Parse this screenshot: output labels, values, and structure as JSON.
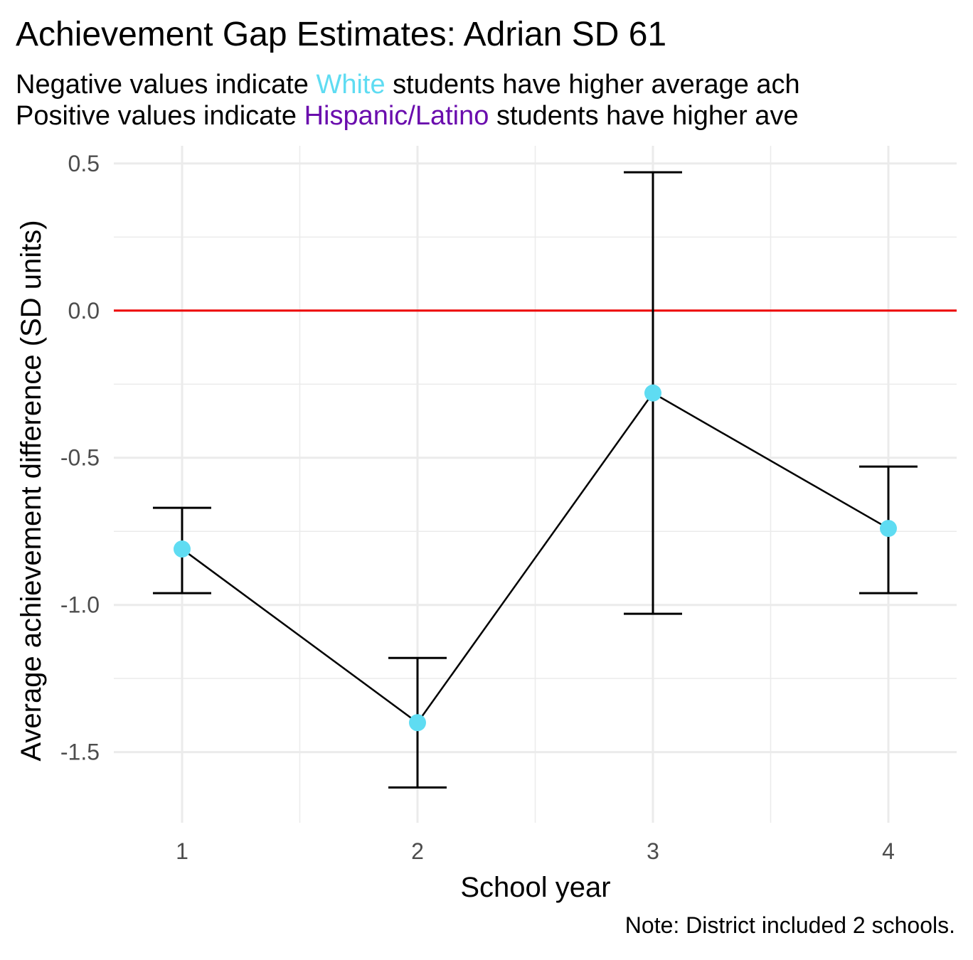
{
  "chart_data": {
    "type": "line",
    "title": "Achievement Gap Estimates: Adrian SD 61",
    "subtitle": {
      "line1": {
        "before": "Negative values indicate ",
        "highlight": "White",
        "after": " students have higher average ach"
      },
      "line2": {
        "before": "Positive values indicate ",
        "highlight": "Hispanic/Latino",
        "after": " students have higher ave"
      }
    },
    "xlabel": "School year",
    "ylabel": "Average achievement difference (SD units)",
    "caption": "Note: District included 2 schools.",
    "x": [
      1,
      2,
      3,
      4
    ],
    "x_tick_labels": [
      "1",
      "2",
      "3",
      "4"
    ],
    "xlim": [
      0.71,
      4.29
    ],
    "y_ticks": [
      0.5,
      0.0,
      -0.5,
      -1.0,
      -1.5
    ],
    "y_tick_labels": [
      "0.5",
      "0.0",
      "-0.5",
      "-1.0",
      "-1.5"
    ],
    "ylim": [
      -1.74,
      0.56
    ],
    "grid": true,
    "reference_line": {
      "y": 0.0,
      "color": "#ee0000"
    },
    "series": [
      {
        "values": [
          -0.81,
          -1.4,
          -0.28,
          -0.74
        ],
        "ci_low": [
          -0.96,
          -1.62,
          -1.03,
          -0.96
        ],
        "ci_high": [
          -0.67,
          -1.18,
          0.47,
          -0.53
        ]
      }
    ],
    "colors": {
      "point": "#5fdcf2",
      "white_highlight": "#5fdcf2",
      "hispanic_highlight": "#6a0dad",
      "line": "#000000",
      "grid": "#ebebeb"
    }
  }
}
